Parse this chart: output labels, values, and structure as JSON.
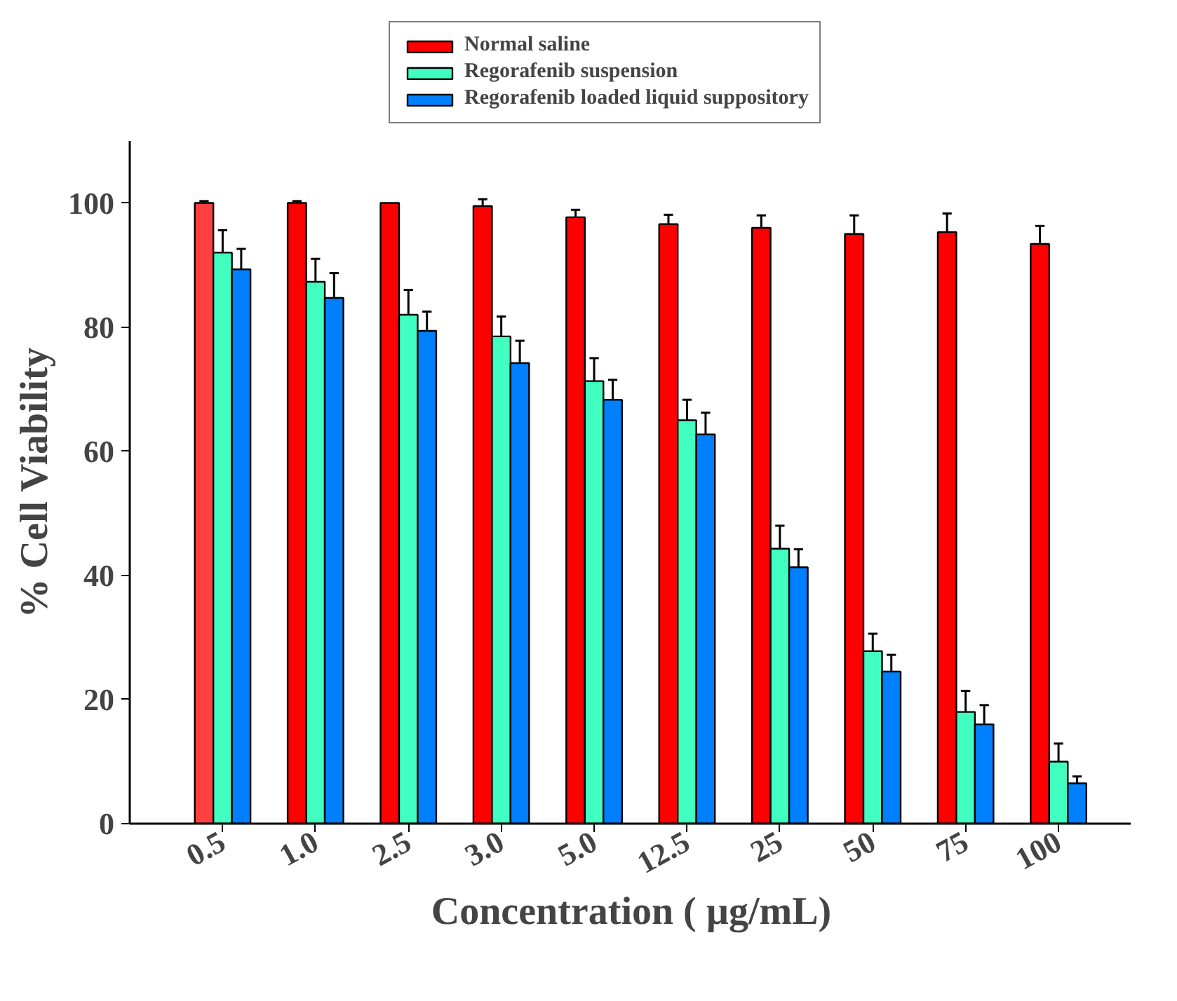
{
  "chart_data": {
    "type": "bar",
    "xlabel": "Concentration ( µg/mL)",
    "ylabel": "% Cell Viability",
    "categories": [
      "0.5",
      "1.0",
      "2.5",
      "3.0",
      "5.0",
      "12.5",
      "25",
      "50",
      "75",
      "100"
    ],
    "series": [
      {
        "name": "Normal saline",
        "color": "#ff0000",
        "colors": [
          "#ff4040",
          "#ff0000",
          "#ff0000",
          "#ff0000",
          "#ff0000",
          "#ff0000",
          "#ff0000",
          "#ff0000",
          "#ff0000",
          "#ff0000"
        ],
        "values": [
          100,
          100,
          100,
          99.5,
          97.7,
          96.6,
          96,
          95,
          95.3,
          93.4
        ],
        "errors": [
          [
            100,
            100.3
          ],
          [
            100,
            100.3
          ],
          null,
          [
            99.5,
            100.6
          ],
          [
            97.7,
            98.9
          ],
          [
            96.6,
            98.1
          ],
          [
            96,
            98
          ],
          [
            95,
            98
          ],
          [
            95.3,
            98.3
          ],
          [
            93.4,
            96.3
          ]
        ]
      },
      {
        "name": "Regorafenib suspension",
        "color": "#40ffc0",
        "values": [
          92,
          87.3,
          82,
          78.5,
          71.3,
          65,
          44.3,
          27.8,
          18,
          10
        ],
        "errors": [
          [
            92,
            95.6
          ],
          [
            87.3,
            91
          ],
          [
            82,
            86
          ],
          [
            78.5,
            81.7
          ],
          [
            71.3,
            75
          ],
          [
            65,
            68.3
          ],
          [
            44.3,
            48
          ],
          [
            27.8,
            30.6
          ],
          [
            18,
            21.4
          ],
          [
            10,
            12.9
          ]
        ]
      },
      {
        "name": "Regorafenib loaded liquid suppository",
        "color": "#0080ff",
        "values": [
          89.3,
          84.7,
          79.4,
          74.2,
          68.3,
          62.7,
          41.3,
          24.5,
          16,
          6.5
        ],
        "errors": [
          [
            89.3,
            92.6
          ],
          [
            84.7,
            88.7
          ],
          [
            79.4,
            82.5
          ],
          [
            74.2,
            77.8
          ],
          [
            68.3,
            71.5
          ],
          [
            62.7,
            66.2
          ],
          [
            41.3,
            44.2
          ],
          [
            24.5,
            27.2
          ],
          [
            16,
            19.1
          ],
          [
            6.5,
            7.6
          ]
        ]
      }
    ],
    "ylim": [
      0,
      110
    ],
    "yticks": [
      0,
      20,
      40,
      60,
      80,
      100
    ],
    "grid": false,
    "legend": "top"
  }
}
